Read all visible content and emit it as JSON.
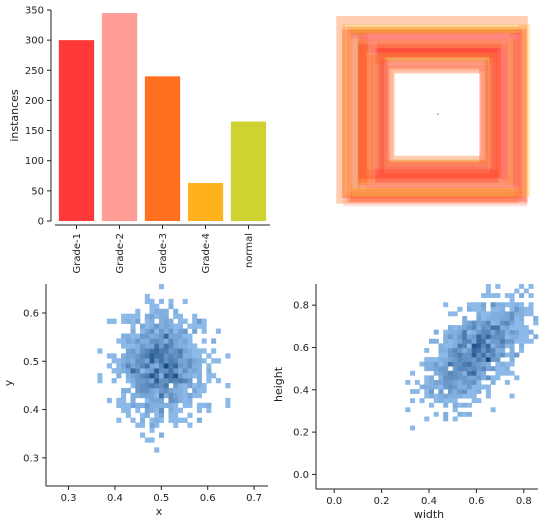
{
  "chart_data": [
    {
      "type": "bar",
      "categories": [
        "Grade-1",
        "Grade-2",
        "Grade-3",
        "Grade-4",
        "normal"
      ],
      "values": [
        300,
        345,
        240,
        63,
        165
      ],
      "colors": [
        "#ff3838",
        "#ff9d97",
        "#ff701f",
        "#ffb21d",
        "#cfd231"
      ],
      "title": "",
      "xlabel": "",
      "ylabel": "instances",
      "ylim": [
        0,
        350
      ],
      "yticks": [
        0,
        50,
        100,
        150,
        200,
        250,
        300,
        350
      ]
    },
    {
      "type": "box_overlay",
      "description_colors": [
        "#ff3838",
        "#ff9d97",
        "#ff701f",
        "#ffb21d",
        "#cfd231"
      ],
      "boxes": [
        {
          "w": 0.96,
          "h": 0.94,
          "class": 2
        },
        {
          "w": 0.92,
          "h": 0.9,
          "class": 1
        },
        {
          "w": 0.88,
          "h": 0.86,
          "class": 0
        },
        {
          "w": 0.86,
          "h": 0.88,
          "class": 2
        },
        {
          "w": 0.84,
          "h": 0.82,
          "class": 1
        },
        {
          "w": 0.82,
          "h": 0.8,
          "class": 0
        },
        {
          "w": 0.8,
          "h": 0.84,
          "class": 4
        },
        {
          "w": 0.78,
          "h": 0.76,
          "class": 2
        },
        {
          "w": 0.76,
          "h": 0.78,
          "class": 1
        },
        {
          "w": 0.74,
          "h": 0.72,
          "class": 0
        },
        {
          "w": 0.72,
          "h": 0.74,
          "class": 2
        },
        {
          "w": 0.7,
          "h": 0.68,
          "class": 3
        },
        {
          "w": 0.68,
          "h": 0.7,
          "class": 1
        },
        {
          "w": 0.66,
          "h": 0.64,
          "class": 0
        },
        {
          "w": 0.64,
          "h": 0.66,
          "class": 2
        },
        {
          "w": 0.62,
          "h": 0.6,
          "class": 1
        },
        {
          "w": 0.6,
          "h": 0.62,
          "class": 0
        },
        {
          "w": 0.58,
          "h": 0.56,
          "class": 4
        },
        {
          "w": 0.56,
          "h": 0.58,
          "class": 2
        },
        {
          "w": 0.54,
          "h": 0.52,
          "class": 1
        },
        {
          "w": 0.52,
          "h": 0.54,
          "class": 0
        },
        {
          "w": 0.5,
          "h": 0.48,
          "class": 2
        },
        {
          "w": 0.9,
          "h": 0.84,
          "class": 0
        },
        {
          "w": 0.86,
          "h": 0.78,
          "class": 1
        },
        {
          "w": 0.8,
          "h": 0.72,
          "class": 2
        },
        {
          "w": 0.74,
          "h": 0.66,
          "class": 0
        },
        {
          "w": 0.94,
          "h": 0.86,
          "class": 3
        },
        {
          "w": 0.7,
          "h": 0.76,
          "class": 1
        },
        {
          "w": 0.66,
          "h": 0.6,
          "class": 2
        },
        {
          "w": 0.6,
          "h": 0.66,
          "class": 0
        }
      ]
    },
    {
      "type": "heatmap",
      "xlabel": "x",
      "ylabel": "y",
      "xlim": [
        0.26,
        0.73
      ],
      "ylim": [
        0.25,
        0.66
      ],
      "xticks": [
        0.3,
        0.4,
        0.5,
        0.6,
        0.7
      ],
      "yticks": [
        0.3,
        0.4,
        0.5,
        0.6
      ],
      "center": [
        0.5,
        0.49
      ],
      "spread": [
        0.045,
        0.055
      ],
      "n_points": 1100,
      "bins": [
        46,
        40
      ],
      "color": "#1f77d4"
    },
    {
      "type": "heatmap",
      "xlabel": "width",
      "ylabel": "height",
      "xlim": [
        -0.06,
        0.86
      ],
      "ylim": [
        -0.05,
        0.9
      ],
      "xticks": [
        0.0,
        0.2,
        0.4,
        0.6,
        0.8
      ],
      "yticks": [
        0.0,
        0.2,
        0.4,
        0.6,
        0.8
      ],
      "center": [
        0.6,
        0.58
      ],
      "spread": [
        0.1,
        0.12
      ],
      "correlation": 0.6,
      "n_points": 1100,
      "bins": [
        46,
        44
      ],
      "color": "#1f77d4"
    }
  ]
}
